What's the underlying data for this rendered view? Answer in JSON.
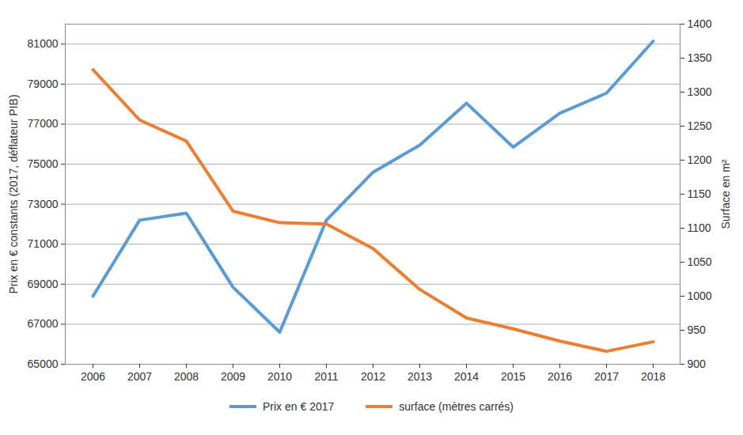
{
  "chart_data": {
    "type": "line",
    "categories": [
      "2006",
      "2007",
      "2008",
      "2009",
      "2010",
      "2011",
      "2012",
      "2013",
      "2014",
      "2015",
      "2016",
      "2017",
      "2018"
    ],
    "series": [
      {
        "name": "Prix en € 2017",
        "color": "#5b9bd5",
        "axis": "y",
        "values": [
          68400,
          72200,
          72550,
          68850,
          66600,
          72200,
          74600,
          75950,
          78050,
          75850,
          77550,
          78550,
          81150
        ]
      },
      {
        "name": "surface (mètres carrés)",
        "color": "#ed7d31",
        "axis": "y2",
        "values": [
          1333,
          1259,
          1228,
          1125,
          1108,
          1106,
          1070,
          1010,
          968,
          952,
          934,
          919,
          933
        ]
      }
    ],
    "y_label": "Prix en € constants (2017, déflateur PIB)",
    "y2_label": "Surface en m²",
    "ylim": [
      65000,
      82000
    ],
    "yticks": [
      65000,
      67000,
      69000,
      71000,
      73000,
      75000,
      77000,
      79000,
      81000
    ],
    "y2lim": [
      900,
      1400
    ],
    "y2ticks": [
      900,
      950,
      1000,
      1050,
      1100,
      1150,
      1200,
      1250,
      1300,
      1350,
      1400
    ],
    "grid": true,
    "legend": "bottom"
  }
}
